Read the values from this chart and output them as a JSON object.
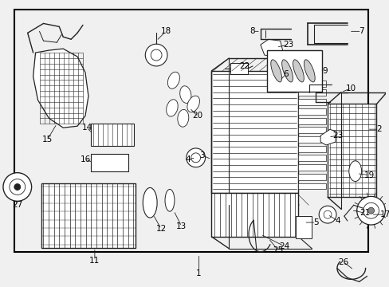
{
  "bg_color": "#f0f0f0",
  "border_color": "#000000",
  "line_color": "#222222",
  "text_color": "#000000",
  "fig_width": 4.89,
  "fig_height": 3.6,
  "dpi": 100
}
